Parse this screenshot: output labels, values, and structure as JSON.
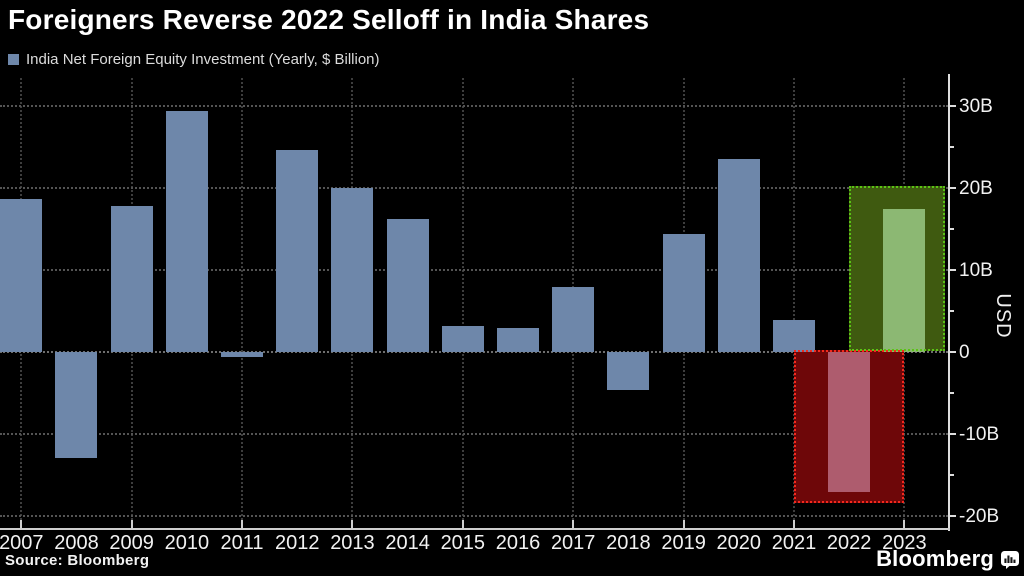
{
  "header": {
    "title": "Foreigners Reverse 2022 Selloff in India Shares",
    "legend_label": "India Net Foreign Equity Investment (Yearly, $ Billion)",
    "legend_color": "#6e87aa"
  },
  "footer": {
    "source_label": "Source: Bloomberg",
    "brand": "Bloomberg"
  },
  "chart_data": {
    "type": "bar",
    "title": "Foreigners Reverse 2022 Selloff in India Shares",
    "series_name": "India Net Foreign Equity Investment (Yearly, $ Billion)",
    "categories": [
      "2007",
      "2008",
      "2009",
      "2010",
      "2011",
      "2012",
      "2013",
      "2014",
      "2015",
      "2016",
      "2017",
      "2018",
      "2019",
      "2020",
      "2021",
      "2022",
      "2023"
    ],
    "values": [
      18.6,
      -12.9,
      17.8,
      29.4,
      -0.6,
      24.6,
      20.0,
      16.2,
      3.2,
      2.9,
      7.9,
      -4.6,
      14.4,
      23.5,
      3.9,
      -17.1,
      17.4
    ],
    "unit": "$ Billion",
    "ylabel": "USD",
    "xlabel": "",
    "ylim": [
      -21.5,
      33.4
    ],
    "grid": "dotted",
    "legend_position": "top-left",
    "bar_color": "#6e87aa",
    "bar_color_overrides": {
      "2022": "#ae5c6e",
      "2023": "#8cb873"
    },
    "y_axis": {
      "ticks": [
        {
          "value": 30,
          "label": "30B"
        },
        {
          "value": 20,
          "label": "20B"
        },
        {
          "value": 10,
          "label": "10B"
        },
        {
          "value": 0,
          "label": "0"
        },
        {
          "value": -10,
          "label": "-10B"
        },
        {
          "value": -20,
          "label": "-20B"
        }
      ],
      "minor_tick_values": [
        25,
        15,
        5,
        -5,
        -15
      ]
    },
    "x_axis": {
      "tick_years": [
        2007,
        2009,
        2011,
        2013,
        2015,
        2017,
        2019,
        2021,
        2023
      ]
    },
    "annotations": [
      {
        "name": "selloff-2022-highlight-box",
        "x_from_year": 2021,
        "x_to_year": 2023,
        "y_from": 0.2,
        "y_to": -18.4,
        "fill_color": "#6e0709",
        "border_color": "#f5281c"
      },
      {
        "name": "reversal-2023-highlight-box",
        "x_from_year": 2022,
        "x_to_year": 2023.78,
        "y_from": 20.2,
        "y_to": 0.1,
        "fill_color": "#3f5a10",
        "border_color": "#5ac414"
      }
    ]
  }
}
